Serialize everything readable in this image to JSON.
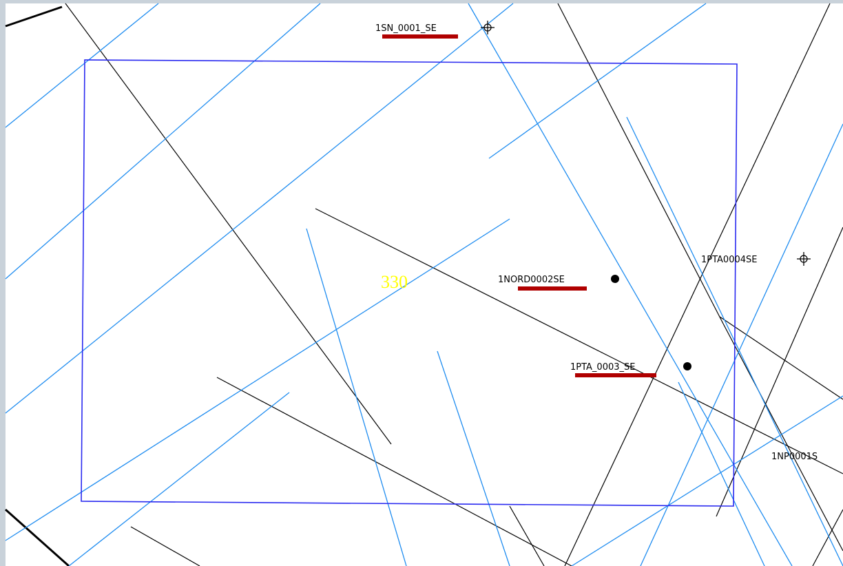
{
  "map": {
    "wells": [
      {
        "label": "1SN_0001_SE"
      },
      {
        "label": "1NORD0002SE"
      },
      {
        "label": "1PTA0004SE"
      },
      {
        "label": "1PTA_0003_SE"
      },
      {
        "label": "1NP0001S"
      }
    ],
    "block_label": "330"
  }
}
